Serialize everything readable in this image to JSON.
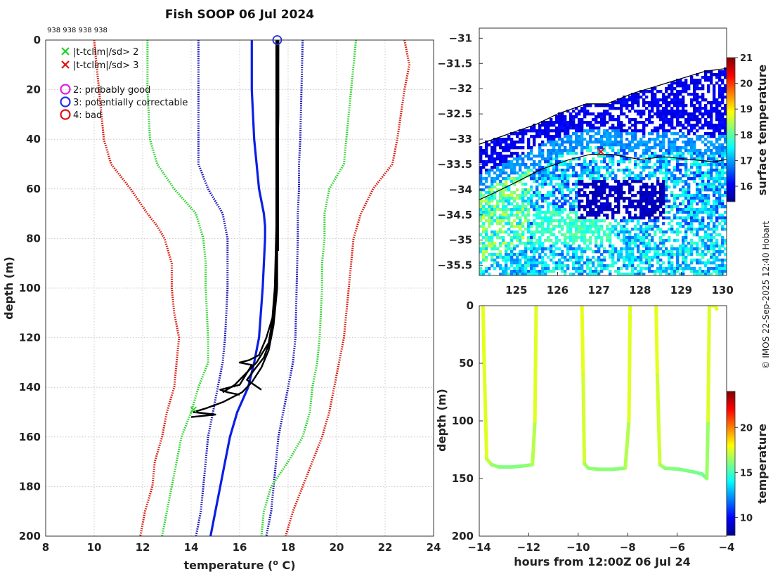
{
  "title": "Fish SOOP 06 Jul 2024",
  "credit": "© IMOS 22-Sep-2025 12:40 Hobart",
  "colors": {
    "profile": "#000000",
    "mean": "#0a1ee6",
    "sd1": "#1414b4",
    "sd2": "#2ed12e",
    "sd3": "#d81b0e",
    "flag2": "#e020e0",
    "flag3": "#1f2ee8",
    "flag4": "#e01010"
  },
  "chart_data": [
    {
      "id": "profile",
      "type": "line",
      "title": "Fish SOOP 06 Jul 2024",
      "top_label": "938 938 938 938",
      "xlabel": "temperature (°C)",
      "xlabel_parts": [
        "temperature (",
        "o",
        " C)"
      ],
      "ylabel": "depth (m)",
      "xlim": [
        8,
        24
      ],
      "ylim": [
        0,
        200
      ],
      "y_reversed": true,
      "grid": true,
      "xticks": [
        8,
        10,
        12,
        14,
        16,
        18,
        20,
        22,
        24
      ],
      "yticks": [
        0,
        20,
        40,
        60,
        80,
        100,
        120,
        140,
        160,
        180,
        200
      ],
      "legend": {
        "placement": "top-left",
        "entries": [
          {
            "marker": "x",
            "color": "#22d022",
            "label": "|t-tclim|/sd> 2"
          },
          {
            "marker": "x",
            "color": "#e01010",
            "label": "|t-tclim|/sd> 3"
          },
          {
            "marker": "o",
            "color": "#e020e0",
            "label": "2: probably good"
          },
          {
            "marker": "o",
            "color": "#1f2ee8",
            "label": "3: potentially correctable"
          },
          {
            "marker": "o",
            "color": "#e01010",
            "label": "4: bad"
          }
        ]
      },
      "series": [
        {
          "name": "climatology mean",
          "style": "solid-blue",
          "depth": [
            0,
            20,
            40,
            60,
            70,
            75,
            80,
            100,
            120,
            130,
            140,
            150,
            160,
            170,
            180,
            190,
            200
          ],
          "temp": [
            16.5,
            16.5,
            16.6,
            16.8,
            17.0,
            17.05,
            17.05,
            16.95,
            16.8,
            16.6,
            16.35,
            15.9,
            15.6,
            15.4,
            15.2,
            15.0,
            14.8
          ]
        },
        {
          "name": "mean - 1 sd",
          "style": "dotted-navy",
          "depth": [
            0,
            20,
            40,
            50,
            60,
            70,
            80,
            100,
            120,
            130,
            140,
            150,
            160,
            170,
            180,
            190,
            200
          ],
          "temp": [
            14.3,
            14.3,
            14.3,
            14.3,
            14.7,
            15.3,
            15.5,
            15.5,
            15.4,
            15.3,
            15.1,
            14.9,
            14.7,
            14.6,
            14.5,
            14.4,
            14.2
          ]
        },
        {
          "name": "mean + 1 sd",
          "style": "dotted-navy",
          "depth": [
            0,
            20,
            40,
            50,
            60,
            70,
            80,
            100,
            120,
            130,
            140,
            150,
            160,
            170,
            180,
            190,
            200
          ],
          "temp": [
            18.6,
            18.55,
            18.5,
            18.45,
            18.45,
            18.4,
            18.4,
            18.35,
            18.3,
            18.2,
            18.0,
            17.8,
            17.6,
            17.5,
            17.4,
            17.3,
            17.1
          ]
        },
        {
          "name": "mean - 2 sd",
          "style": "dotted-green",
          "depth": [
            0,
            20,
            40,
            50,
            60,
            70,
            80,
            90,
            100,
            120,
            130,
            140,
            150,
            160,
            170,
            180,
            190,
            200
          ],
          "temp": [
            12.2,
            12.2,
            12.3,
            12.6,
            13.3,
            14.2,
            14.5,
            14.6,
            14.6,
            14.7,
            14.7,
            14.3,
            14.0,
            13.6,
            13.4,
            13.2,
            13.0,
            12.8
          ]
        },
        {
          "name": "mean + 2 sd",
          "style": "dotted-green",
          "depth": [
            0,
            20,
            40,
            50,
            60,
            70,
            80,
            90,
            100,
            120,
            130,
            140,
            150,
            160,
            170,
            180,
            190,
            200
          ],
          "temp": [
            20.8,
            20.6,
            20.4,
            20.3,
            19.7,
            19.5,
            19.5,
            19.4,
            19.4,
            19.3,
            19.2,
            19.0,
            18.9,
            18.6,
            18.0,
            17.3,
            17.0,
            16.9
          ]
        },
        {
          "name": "mean - 3 sd",
          "style": "dotted-red",
          "depth": [
            0,
            20,
            40,
            50,
            60,
            70,
            75,
            80,
            90,
            100,
            110,
            120,
            130,
            140,
            150,
            160,
            170,
            180,
            190,
            200
          ],
          "temp": [
            10.0,
            10.2,
            10.4,
            10.7,
            11.5,
            12.2,
            12.6,
            12.9,
            13.2,
            13.2,
            13.3,
            13.5,
            13.4,
            13.3,
            13.0,
            12.8,
            12.5,
            12.4,
            12.1,
            11.9
          ]
        },
        {
          "name": "mean + 3 sd",
          "style": "dotted-red",
          "depth": [
            0,
            10,
            20,
            40,
            50,
            60,
            70,
            80,
            100,
            120,
            130,
            140,
            150,
            160,
            170,
            180,
            190,
            200
          ],
          "temp": [
            22.8,
            23.0,
            22.8,
            22.5,
            22.3,
            21.5,
            21.0,
            20.7,
            20.5,
            20.3,
            20.1,
            19.9,
            19.7,
            19.4,
            19.0,
            18.6,
            18.2,
            17.9
          ]
        }
      ],
      "profiles": [
        [
          [
            17.6,
            0
          ],
          [
            17.6,
            30
          ],
          [
            17.55,
            60
          ],
          [
            17.55,
            80
          ],
          [
            17.5,
            100
          ],
          [
            17.45,
            110
          ],
          [
            17.3,
            120
          ],
          [
            17.0,
            128
          ],
          [
            16.6,
            133
          ],
          [
            16.3,
            137
          ],
          [
            16.9,
            141
          ]
        ],
        [
          [
            17.55,
            0
          ],
          [
            17.55,
            30
          ],
          [
            17.55,
            60
          ],
          [
            17.5,
            80
          ],
          [
            17.45,
            100
          ],
          [
            17.35,
            112
          ],
          [
            17.1,
            120
          ],
          [
            16.8,
            127
          ],
          [
            16.4,
            129
          ],
          [
            16.0,
            130
          ],
          [
            16.5,
            131
          ],
          [
            16.0,
            139
          ],
          [
            15.2,
            141
          ],
          [
            15.5,
            142
          ],
          [
            16.0,
            143
          ]
        ],
        [
          [
            17.6,
            0
          ],
          [
            17.55,
            30
          ],
          [
            17.55,
            60
          ],
          [
            17.55,
            80
          ],
          [
            17.55,
            100
          ],
          [
            17.4,
            115
          ],
          [
            17.2,
            125
          ],
          [
            16.9,
            132
          ],
          [
            16.5,
            138
          ],
          [
            16.1,
            142
          ],
          [
            15.3,
            146
          ],
          [
            14.6,
            148.5
          ],
          [
            14.1,
            150
          ],
          [
            15.0,
            151
          ],
          [
            14.0,
            152
          ]
        ],
        [
          [
            17.55,
            0
          ],
          [
            17.55,
            40
          ],
          [
            17.5,
            90
          ],
          [
            17.4,
            110
          ],
          [
            17.2,
            122
          ],
          [
            16.7,
            130
          ],
          [
            16.2,
            135
          ],
          [
            15.8,
            139
          ],
          [
            15.3,
            142
          ]
        ]
      ],
      "flag_markers": [
        {
          "temp": 17.55,
          "depth": 0,
          "flag": 3
        }
      ],
      "out_of_range_markers": [
        {
          "temp": 14.1,
          "depth": 149,
          "level": "sd>2"
        }
      ]
    },
    {
      "id": "map",
      "type": "heatmap",
      "xlim": [
        124.1,
        130.1
      ],
      "ylim": [
        -35.7,
        -30.8
      ],
      "xticks": [
        125,
        126,
        127,
        128,
        129,
        130
      ],
      "yticks": [
        -31,
        -31.5,
        -32,
        -32.5,
        -33,
        -33.5,
        -34,
        -34.5,
        -35,
        -35.5
      ],
      "colorbar": {
        "label": "surface temperature",
        "range": [
          15.4,
          21
        ],
        "ticks": [
          16,
          17,
          18,
          19,
          20,
          21
        ]
      },
      "track": [
        [
          124.1,
          -34.2
        ],
        [
          124.5,
          -34.05
        ],
        [
          125.0,
          -33.85
        ],
        [
          125.6,
          -33.6
        ],
        [
          126.3,
          -33.4
        ],
        [
          126.8,
          -33.3
        ],
        [
          127.3,
          -33.3
        ],
        [
          128.0,
          -33.4
        ],
        [
          128.6,
          -33.35
        ],
        [
          129.2,
          -33.4
        ],
        [
          129.8,
          -33.45
        ],
        [
          130.1,
          -33.4
        ]
      ],
      "coast": [
        [
          124.1,
          -33.1
        ],
        [
          124.8,
          -32.9
        ],
        [
          125.5,
          -32.7
        ],
        [
          126.0,
          -32.5
        ],
        [
          126.7,
          -32.3
        ],
        [
          127.2,
          -32.3
        ],
        [
          127.8,
          -32.1
        ],
        [
          128.4,
          -31.95
        ],
        [
          129.0,
          -31.8
        ],
        [
          129.6,
          -31.65
        ],
        [
          130.1,
          -31.6
        ]
      ],
      "profile_location": {
        "lon": 127.05,
        "lat": -33.25
      }
    },
    {
      "id": "depth_time",
      "type": "scatter",
      "xlabel": "hours from 12:00Z 06 Jul 24",
      "ylabel": "depth (m)",
      "xlim": [
        -14,
        -4
      ],
      "ylim": [
        0,
        200
      ],
      "y_reversed": true,
      "xticks": [
        -14,
        -12,
        -10,
        -8,
        -6,
        -4
      ],
      "yticks": [
        0,
        50,
        100,
        150,
        200
      ],
      "colorbar": {
        "label": "temperature",
        "range": [
          8,
          24
        ],
        "ticks": [
          10,
          15,
          20
        ]
      },
      "trace": [
        [
          [
            -13.85,
            0,
            17.6
          ],
          [
            -13.8,
            50,
            17.6
          ],
          [
            -13.7,
            133,
            17.4
          ],
          [
            -13.5,
            138,
            16.6
          ],
          [
            -13.2,
            140,
            16.0
          ],
          [
            -12.7,
            140,
            16.0
          ],
          [
            -12.2,
            139,
            16.1
          ],
          [
            -11.85,
            138,
            16.3
          ],
          [
            -11.75,
            100,
            17.4
          ],
          [
            -11.7,
            0,
            17.6
          ]
        ],
        [
          [
            -9.85,
            0,
            17.6
          ],
          [
            -9.8,
            60,
            17.6
          ],
          [
            -9.75,
            137,
            17.0
          ],
          [
            -9.6,
            141,
            16.3
          ],
          [
            -9.2,
            142,
            16.2
          ],
          [
            -8.6,
            142,
            16.1
          ],
          [
            -8.1,
            141,
            16.2
          ],
          [
            -7.95,
            100,
            17.4
          ],
          [
            -7.9,
            0,
            17.6
          ]
        ],
        [
          [
            -6.85,
            0,
            17.6
          ],
          [
            -6.8,
            60,
            17.6
          ],
          [
            -6.7,
            138,
            16.9
          ],
          [
            -6.5,
            141,
            16.2
          ],
          [
            -5.9,
            142,
            16.0
          ],
          [
            -5.4,
            144,
            15.9
          ],
          [
            -5.0,
            146,
            15.8
          ],
          [
            -4.8,
            150,
            15.6
          ],
          [
            -4.75,
            100,
            17.2
          ],
          [
            -4.7,
            0,
            17.6
          ]
        ],
        [
          [
            -4.6,
            0,
            17.6
          ],
          [
            -4.45,
            0,
            17.6
          ],
          [
            -4.4,
            3,
            17.6
          ]
        ]
      ]
    }
  ]
}
